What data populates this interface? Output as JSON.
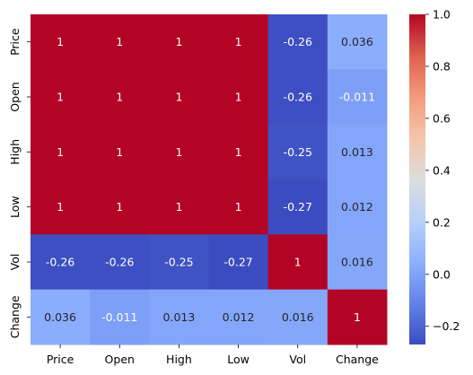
{
  "chart_data": {
    "type": "heatmap",
    "title": "",
    "xlabel": "",
    "ylabel": "",
    "x_labels": [
      "Price",
      "Open",
      "High",
      "Low",
      "Vol",
      "Change"
    ],
    "y_labels": [
      "Price",
      "Open",
      "High",
      "Low",
      "Vol",
      "Change"
    ],
    "values": [
      [
        1,
        1,
        1,
        1,
        -0.26,
        0.036
      ],
      [
        1,
        1,
        1,
        1,
        -0.26,
        -0.011
      ],
      [
        1,
        1,
        1,
        1,
        -0.25,
        0.013
      ],
      [
        1,
        1,
        1,
        1,
        -0.27,
        0.012
      ],
      [
        -0.26,
        -0.26,
        -0.25,
        -0.27,
        1,
        0.016
      ],
      [
        0.036,
        -0.011,
        0.013,
        0.012,
        0.016,
        1
      ]
    ],
    "annotations": [
      [
        "1",
        "1",
        "1",
        "1",
        "-0.26",
        "0.036"
      ],
      [
        "1",
        "1",
        "1",
        "1",
        "-0.26",
        "-0.011"
      ],
      [
        "1",
        "1",
        "1",
        "1",
        "-0.25",
        "0.013"
      ],
      [
        "1",
        "1",
        "1",
        "1",
        "-0.27",
        "0.012"
      ],
      [
        "-0.26",
        "-0.26",
        "-0.25",
        "-0.27",
        "1",
        "0.016"
      ],
      [
        "0.036",
        "-0.011",
        "0.013",
        "0.012",
        "0.016",
        "1"
      ]
    ],
    "colormap": "coolwarm",
    "vmin": -0.27,
    "vmax": 1.0,
    "colorbar_ticks": [
      1.0,
      0.8,
      0.6,
      0.4,
      0.2,
      0.0,
      -0.2
    ],
    "colorbar_tick_labels": [
      "1.0",
      "0.8",
      "0.6",
      "0.4",
      "0.2",
      "0.0",
      "−0.2"
    ],
    "grid": false
  }
}
